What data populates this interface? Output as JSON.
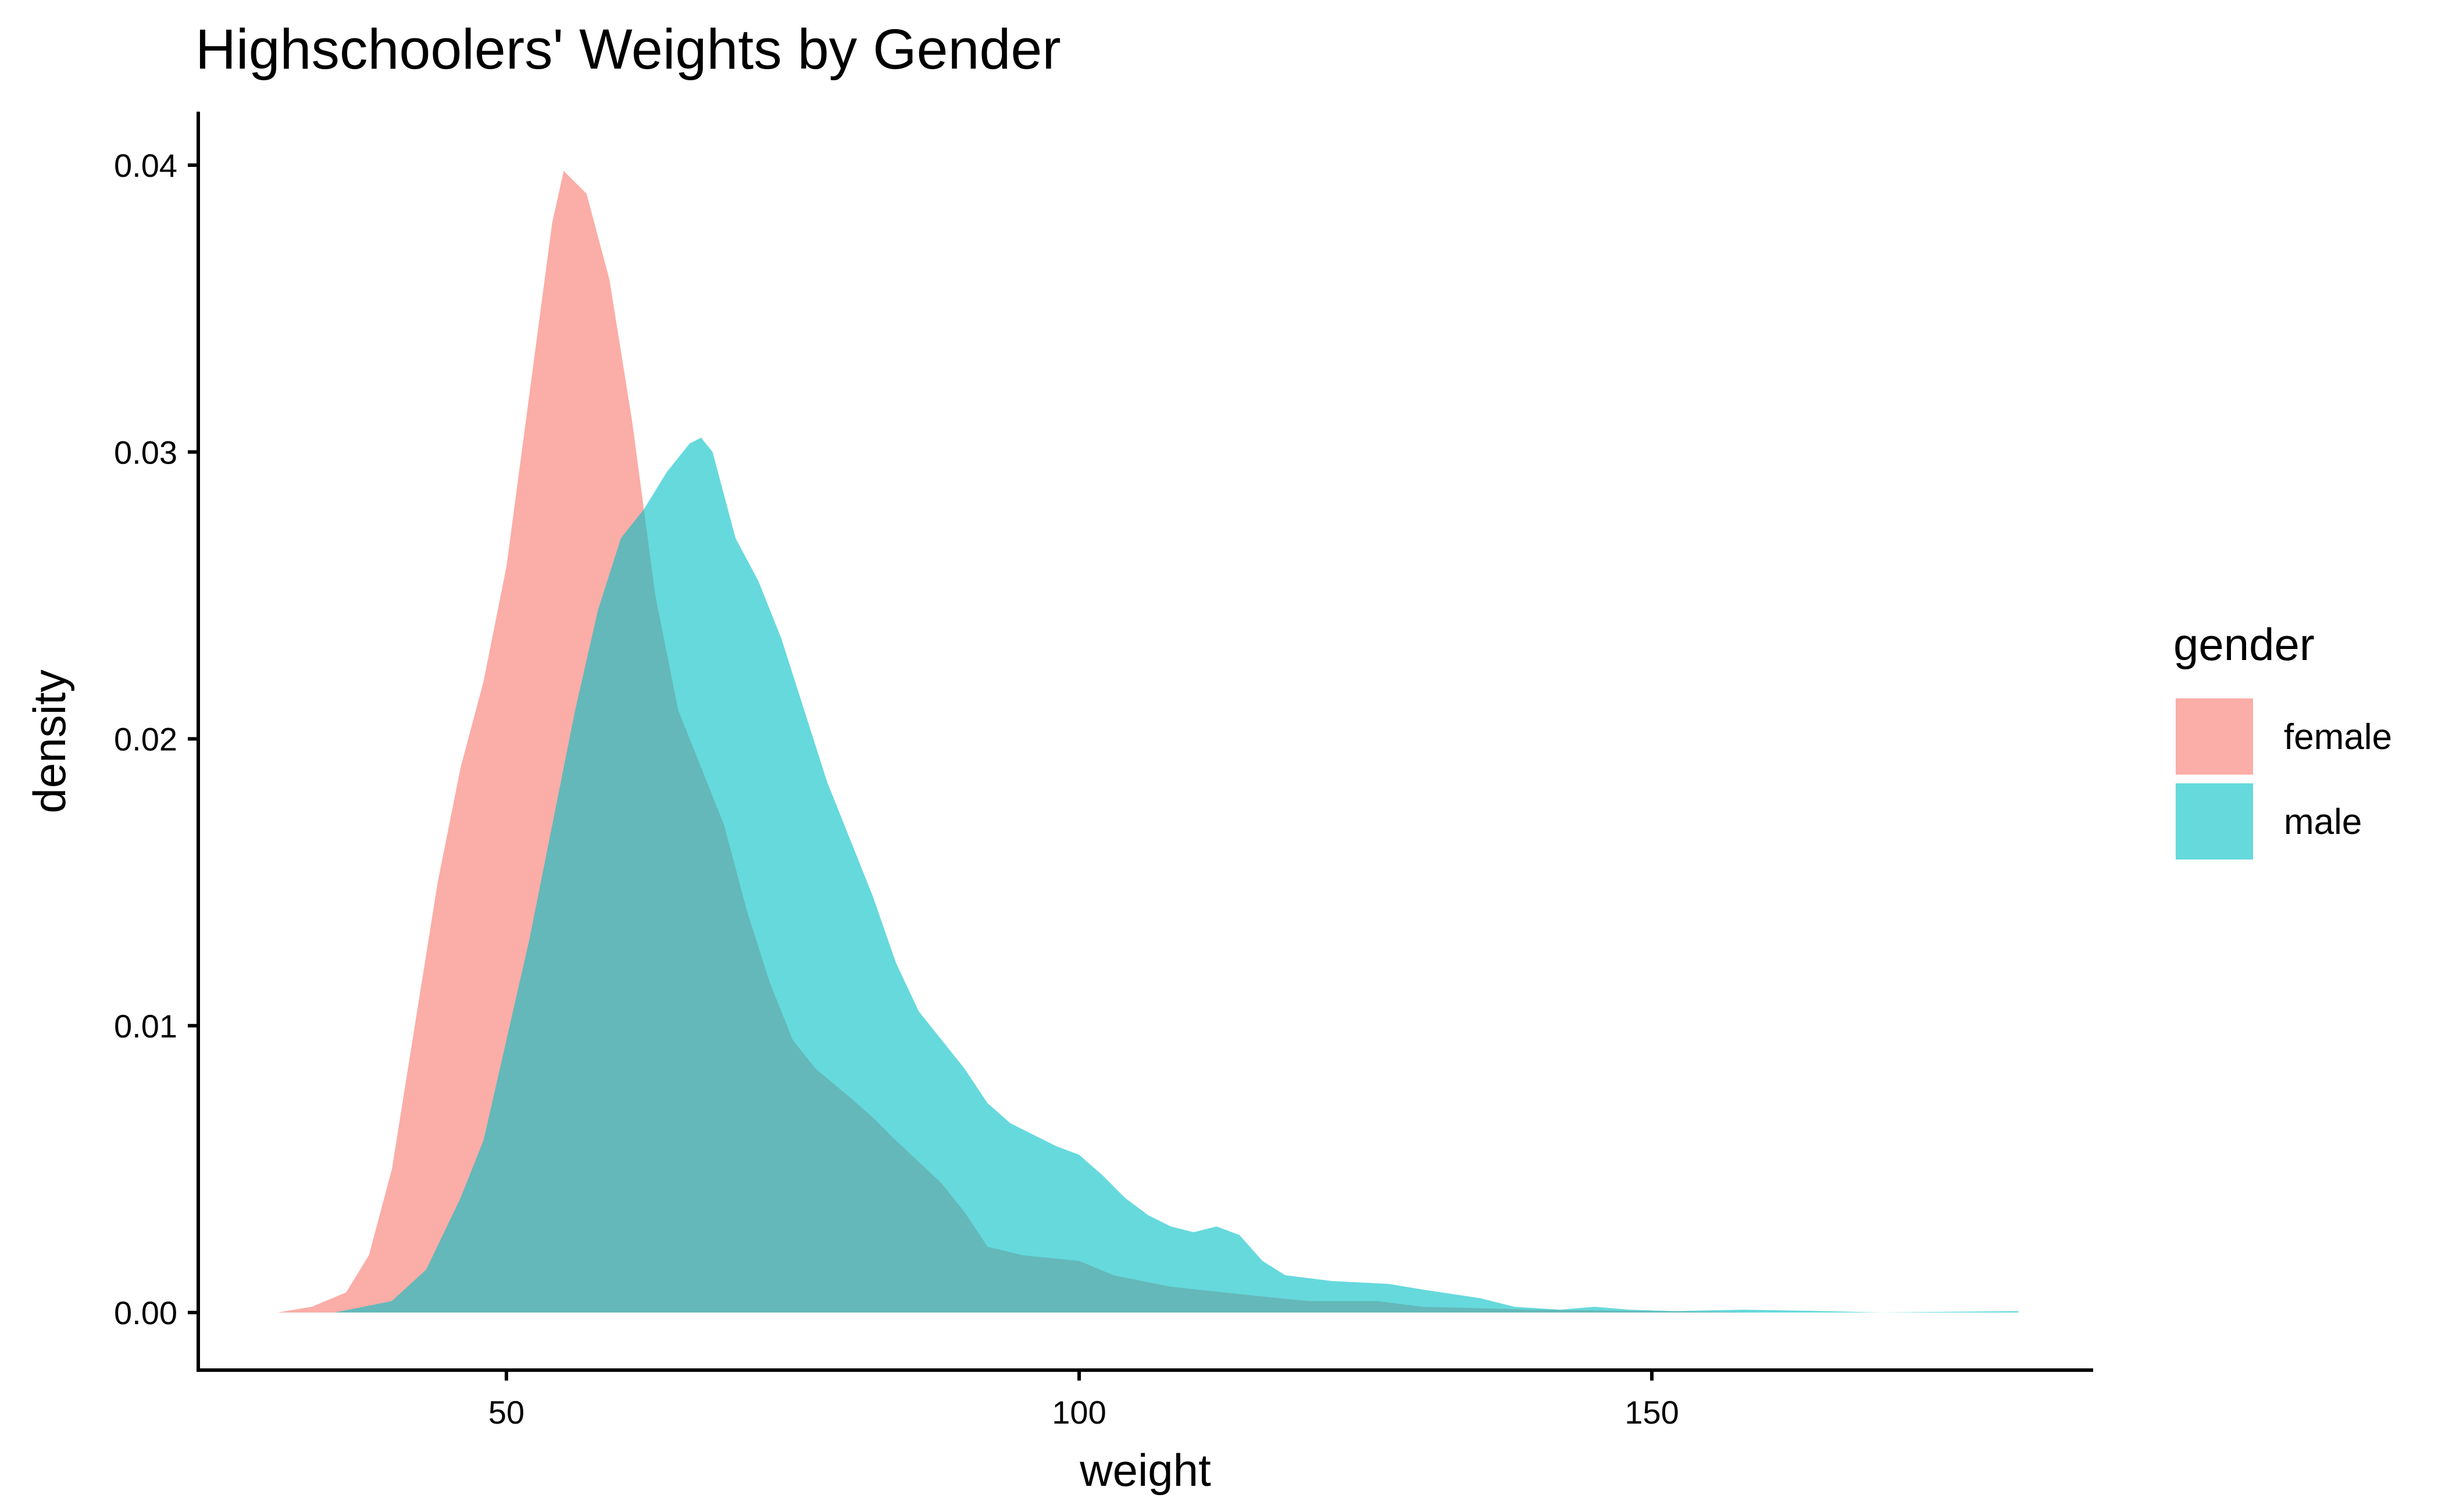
{
  "chart_data": {
    "type": "area",
    "title": "Highschoolers' Weights by Gender",
    "xlabel": "weight",
    "ylabel": "density",
    "xlim": [
      25,
      195
    ],
    "ylim": [
      -0.0019,
      0.0402
    ],
    "xticks": [
      50,
      100,
      150
    ],
    "xtick_labels": [
      "50",
      "100",
      "150"
    ],
    "yticks": [
      0,
      0.01,
      0.02,
      0.03,
      0.04
    ],
    "ytick_labels": [
      "0.00",
      "0.01",
      "0.02",
      "0.03",
      "0.04"
    ],
    "grid": false,
    "legend": {
      "title": "gender",
      "placement": "right",
      "entries": [
        "female",
        "male"
      ]
    },
    "series": [
      {
        "name": "female",
        "color": "#F8766D",
        "opacity": 0.6,
        "x": [
          30,
          33,
          36,
          38,
          40,
          42,
          44,
          46,
          48,
          50,
          52,
          54,
          55,
          57,
          59,
          61,
          63,
          65,
          67,
          69,
          71,
          73,
          75,
          77,
          80,
          82,
          84,
          88,
          90,
          92,
          95,
          100,
          103,
          108,
          115,
          120,
          126,
          130,
          140,
          150,
          160
        ],
        "y": [
          0,
          0.0002,
          0.0007,
          0.002,
          0.005,
          0.01,
          0.015,
          0.019,
          0.022,
          0.026,
          0.032,
          0.038,
          0.0398,
          0.039,
          0.036,
          0.031,
          0.025,
          0.021,
          0.019,
          0.017,
          0.014,
          0.0115,
          0.0095,
          0.0085,
          0.0075,
          0.0068,
          0.006,
          0.0045,
          0.0035,
          0.0023,
          0.002,
          0.0018,
          0.0013,
          0.0009,
          0.0006,
          0.0004,
          0.0004,
          0.0002,
          0.0001,
          5e-05,
          0
        ]
      },
      {
        "name": "male",
        "color": "#00BFC4",
        "opacity": 0.6,
        "x": [
          35,
          40,
          43,
          46,
          48,
          50,
          52,
          54,
          56,
          58,
          60,
          62,
          64,
          66,
          67,
          68,
          70,
          72,
          74,
          76,
          78,
          80,
          82,
          84,
          86,
          88,
          90,
          92,
          94,
          96,
          98,
          100,
          102,
          104,
          106,
          108,
          110,
          112,
          114,
          116,
          118,
          122,
          127,
          130,
          135,
          138,
          142,
          145,
          148,
          152,
          158,
          165,
          170,
          182
        ],
        "y": [
          0,
          0.0004,
          0.0015,
          0.004,
          0.006,
          0.0095,
          0.013,
          0.017,
          0.021,
          0.0245,
          0.027,
          0.028,
          0.0293,
          0.0303,
          0.0305,
          0.03,
          0.027,
          0.0255,
          0.0235,
          0.021,
          0.0185,
          0.0165,
          0.0145,
          0.0122,
          0.0105,
          0.0095,
          0.0085,
          0.0073,
          0.0066,
          0.0062,
          0.0058,
          0.0055,
          0.0048,
          0.004,
          0.0034,
          0.003,
          0.0028,
          0.003,
          0.0027,
          0.0018,
          0.0013,
          0.0011,
          0.001,
          0.0008,
          0.0005,
          0.0002,
          0.0001,
          0.0002,
          0.0001,
          5e-05,
          0.0001,
          5e-05,
          0,
          5e-05
        ]
      }
    ]
  }
}
